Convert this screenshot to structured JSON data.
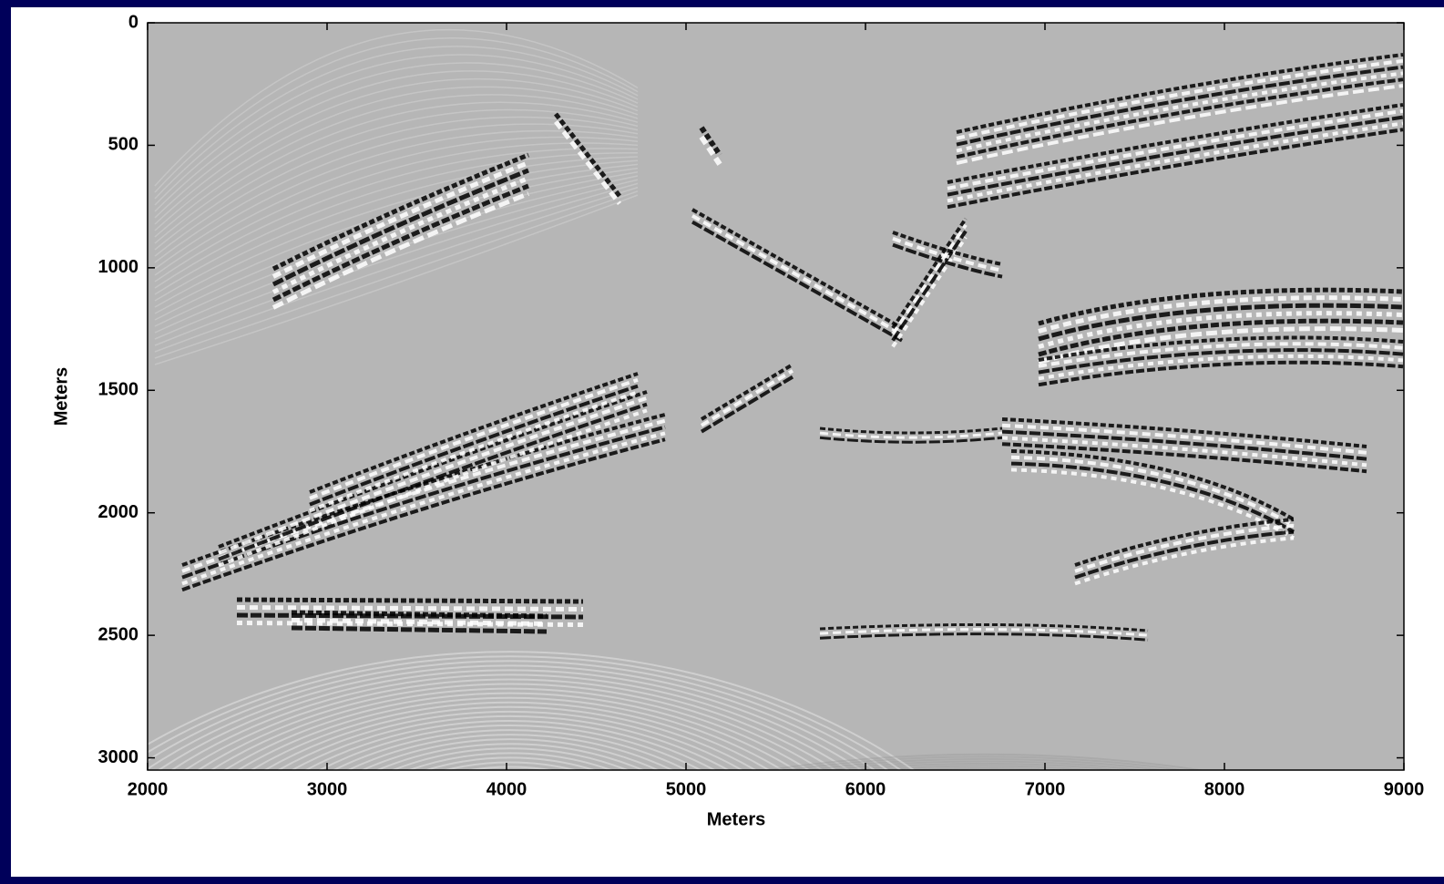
{
  "chart_data": {
    "type": "image",
    "xlabel": "Meters",
    "ylabel": "Meters",
    "xlim": [
      2000,
      9000
    ],
    "xticks": [
      2000,
      3000,
      4000,
      5000,
      6000,
      7000,
      8000,
      9000
    ],
    "ylim": [
      0,
      3050
    ],
    "yticks": [
      0,
      500,
      1000,
      1500,
      2000,
      2500,
      3000
    ],
    "y_reversed": true
  }
}
